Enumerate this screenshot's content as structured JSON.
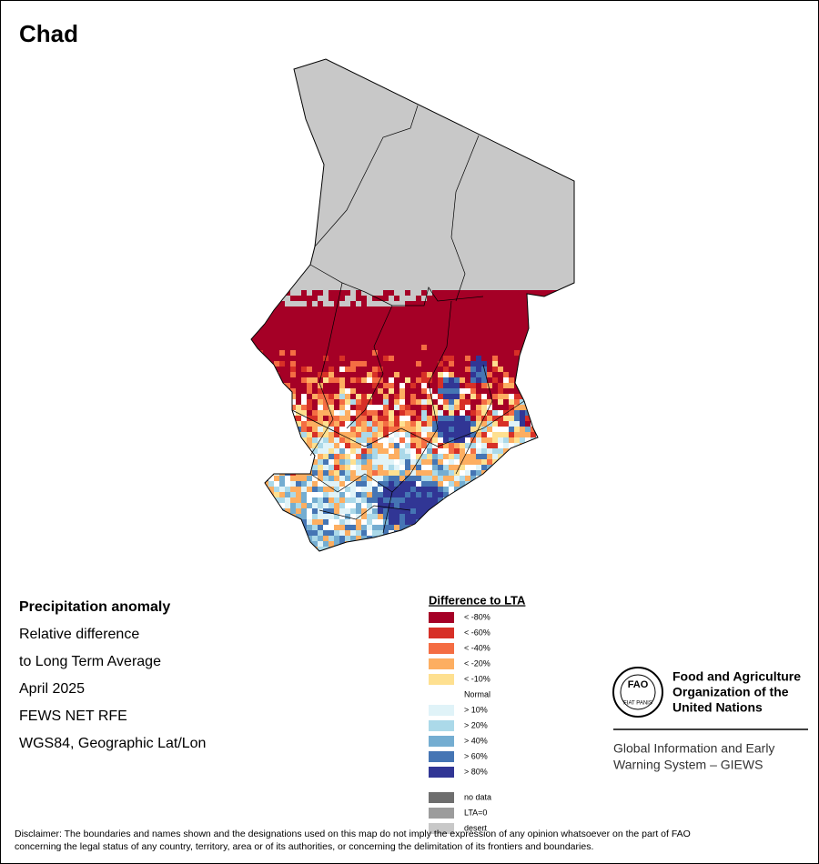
{
  "map_title": "Chad",
  "info": [
    "Precipitation anomaly",
    "Relative difference",
    "to Long Term Average",
    "April 2025",
    "FEWS NET RFE",
    "WGS84, Geographic Lat/Lon"
  ],
  "legend": {
    "title": "Difference to LTA",
    "items": [
      {
        "label": "< -80%",
        "color": "#a50026"
      },
      {
        "label": "< -60%",
        "color": "#d73027"
      },
      {
        "label": "< -40%",
        "color": "#f46d43"
      },
      {
        "label": "< -20%",
        "color": "#fdae61"
      },
      {
        "label": "< -10%",
        "color": "#fee090"
      },
      {
        "label": "Normal",
        "color": "#ffffff"
      },
      {
        "label": "> 10%",
        "color": "#e0f3f8"
      },
      {
        "label": "> 20%",
        "color": "#abd9e9"
      },
      {
        "label": "> 40%",
        "color": "#74add1"
      },
      {
        "label": "> 60%",
        "color": "#4575b4"
      },
      {
        "label": "> 80%",
        "color": "#313695"
      }
    ],
    "extra": [
      {
        "label": "no data",
        "color": "#6e6e6e"
      },
      {
        "label": "LTA=0",
        "color": "#9c9c9c"
      },
      {
        "label": "desert",
        "color": "#c8c8c8"
      }
    ]
  },
  "organization": {
    "logo_text": "FAO",
    "motto": "FIAT PANIS",
    "name": [
      "Food and Agriculture",
      "Organization of the",
      "United Nations"
    ],
    "system": [
      "Global Information and Early",
      "Warning System – GIEWS"
    ]
  },
  "disclaimer": [
    "Disclaimer: The boundaries and names shown and the designations used on this map do not imply the expression of any opinion whatsoever on the part of FAO",
    "concerning the legal status of any country, territory, area or of its authorities, or concerning the delimitation of its frontiers and boundaries."
  ]
}
